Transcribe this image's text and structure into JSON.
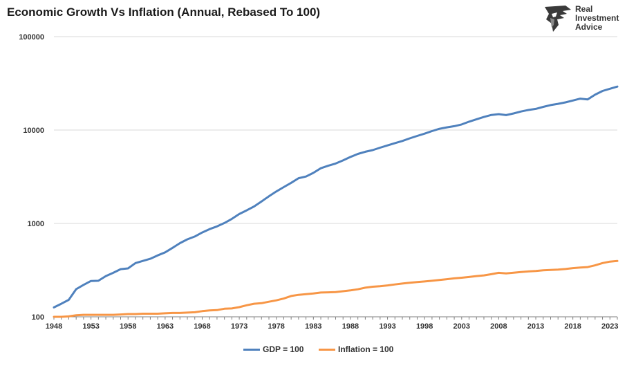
{
  "chart_data": {
    "type": "line",
    "title": "Economic Growth Vs Inflation (Annual, Rebased To 100)",
    "xlabel": "",
    "ylabel": "",
    "scale": "log",
    "ylim": [
      100,
      100000
    ],
    "yticks": [
      100,
      1000,
      10000,
      100000
    ],
    "ytick_labels": [
      "100",
      "1000",
      "10000",
      "100000"
    ],
    "xlim": [
      1948,
      2024
    ],
    "xticks": [
      1948,
      1953,
      1958,
      1963,
      1968,
      1973,
      1978,
      1983,
      1988,
      1993,
      1998,
      2003,
      2008,
      2013,
      2018,
      2023
    ],
    "grid": "horizontal",
    "legend_position": "bottom",
    "x": [
      1948,
      1949,
      1950,
      1951,
      1952,
      1953,
      1954,
      1955,
      1956,
      1957,
      1958,
      1959,
      1960,
      1961,
      1962,
      1963,
      1964,
      1965,
      1966,
      1967,
      1968,
      1969,
      1970,
      1971,
      1972,
      1973,
      1974,
      1975,
      1976,
      1977,
      1978,
      1979,
      1980,
      1981,
      1982,
      1983,
      1984,
      1985,
      1986,
      1987,
      1988,
      1989,
      1990,
      1991,
      1992,
      1993,
      1994,
      1995,
      1996,
      1997,
      1998,
      1999,
      2000,
      2001,
      2002,
      2003,
      2004,
      2005,
      2006,
      2007,
      2008,
      2009,
      2010,
      2011,
      2012,
      2013,
      2014,
      2015,
      2016,
      2017,
      2018,
      2019,
      2020,
      2021,
      2022,
      2023,
      2024
    ],
    "series": [
      {
        "name": "GDP = 100",
        "color": "#4F81BD",
        "values": [
          126,
          138,
          152,
          198,
          220,
          242,
          243,
          273,
          296,
          324,
          330,
          376,
          397,
          418,
          455,
          490,
          548,
          615,
          675,
          725,
          800,
          870,
          930,
          1010,
          1120,
          1260,
          1380,
          1520,
          1720,
          1950,
          2200,
          2450,
          2720,
          3050,
          3180,
          3480,
          3900,
          4150,
          4380,
          4730,
          5150,
          5550,
          5850,
          6100,
          6470,
          6850,
          7250,
          7640,
          8150,
          8650,
          9150,
          9750,
          10320,
          10680,
          11000,
          11480,
          12300,
          13050,
          13800,
          14500,
          14800,
          14450,
          15050,
          15800,
          16400,
          16850,
          17700,
          18500,
          19100,
          19800,
          20700,
          21700,
          21300,
          23900,
          26200,
          27700,
          29200
        ]
      },
      {
        "name": "Inflation = 100",
        "color": "#F79646",
        "values": [
          100,
          100,
          101,
          104,
          105,
          105,
          105,
          105,
          105,
          106,
          107,
          107,
          108,
          108,
          108,
          109,
          110,
          110,
          111,
          112,
          115,
          117,
          118,
          122,
          123,
          127,
          133,
          138,
          140,
          145,
          150,
          157,
          167,
          172,
          175,
          178,
          182,
          183,
          184,
          188,
          192,
          197,
          205,
          210,
          213,
          217,
          222,
          227,
          232,
          236,
          239,
          243,
          248,
          253,
          258,
          262,
          267,
          273,
          278,
          286,
          296,
          292,
          297,
          302,
          306,
          310,
          315,
          318,
          320,
          325,
          332,
          337,
          341,
          356,
          376,
          390,
          396
        ]
      }
    ]
  }
}
